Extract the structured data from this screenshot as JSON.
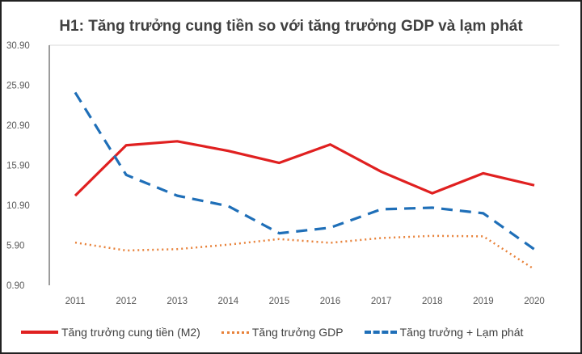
{
  "chart_data": {
    "type": "line",
    "title": "H1: Tăng trưởng cung tiền so với tăng trưởng GDP và lạm phát",
    "categories": [
      "2011",
      "2012",
      "2013",
      "2014",
      "2015",
      "2016",
      "2017",
      "2018",
      "2019",
      "2020"
    ],
    "ylim": [
      0.9,
      30.9
    ],
    "yticks": [
      "0.90",
      "5.90",
      "10.90",
      "15.90",
      "20.90",
      "25.90",
      "30.90"
    ],
    "grid": false,
    "legend": "bottom",
    "series": [
      {
        "name": "Tăng trưởng cung tiền (M2)",
        "color": "#e02020",
        "style": "solid",
        "values": [
          12.1,
          18.4,
          18.9,
          17.7,
          16.2,
          18.5,
          15.1,
          12.4,
          14.9,
          13.4
        ]
      },
      {
        "name": "Tăng trưởng GDP",
        "color": "#e8823a",
        "style": "dotted",
        "values": [
          6.24,
          5.25,
          5.42,
          5.98,
          6.68,
          6.21,
          6.81,
          7.08,
          7.02,
          2.91
        ]
      },
      {
        "name": "Tăng trưởng + Lạm phát",
        "color": "#1f6fb8",
        "style": "dashed",
        "values": [
          25.0,
          14.7,
          12.1,
          10.8,
          7.4,
          8.1,
          10.4,
          10.6,
          9.9,
          5.4
        ]
      }
    ]
  }
}
